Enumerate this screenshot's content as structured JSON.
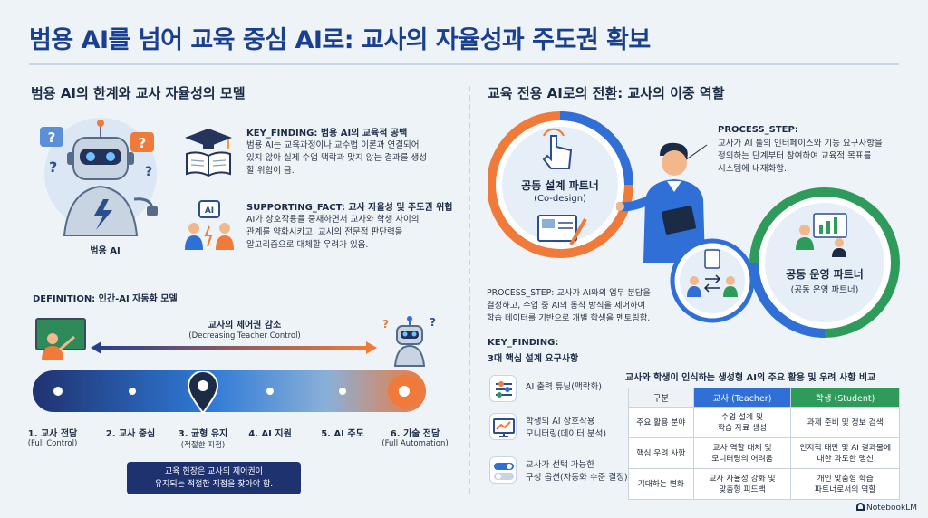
{
  "title": "범용 AI를 넘어 교육 중심 AI로: 교사의 자율성과 주도권 확보",
  "left": {
    "section_title": "범용 AI의 한계와 교사 자율성의 모델",
    "robot_label": "범용 AI",
    "finding1": {
      "heading": "KEY_FINDING: 범용 AI의 교육적 공백",
      "lines": [
        "범용 AI는 교육과정이나 교수법 이론과 연결되어",
        "있지 않아 실제 수업 맥락과 맞지 않는 결과를 생성",
        "할 위험이 큼."
      ]
    },
    "finding2": {
      "heading": "SUPPORTING_FACT: 교사 자율성 및 주도권 위협",
      "lines": [
        "AI가 상호작용을 중재하면서 교사와 학생 사이의",
        "관계를 약화시키고, 교사의 전문적 판단력을",
        "알고리즘으로 대체할 우려가 있음."
      ]
    },
    "definition": "DEFINITION: 인간-AI 자동화 모델",
    "control_label": "교사의 제어권 감소",
    "control_sub": "(Decreasing Teacher Control)",
    "stages": [
      {
        "label": "1. 교사 전담",
        "sub": "(Full Control)"
      },
      {
        "label": "2. 교사 중심",
        "sub": ""
      },
      {
        "label": "3. 균형 유지",
        "sub": "(적절한 지점)"
      },
      {
        "label": "4. AI 지원",
        "sub": ""
      },
      {
        "label": "5. AI 주도",
        "sub": ""
      },
      {
        "label": "6. 기술 전담",
        "sub": "(Full Automation)"
      }
    ],
    "note": [
      "교육 현장은 교사의 제어권이",
      "유지되는 적절한 지점을 찾아야 함."
    ]
  },
  "right": {
    "section_title": "교육 전용 AI로의 전환: 교사의 이중 역할",
    "process1": {
      "heading": "PROCESS_STEP:",
      "lines": [
        "교사가 AI 툴의 인터페이스와 기능 요구사항을",
        "정의하는 단계부터 참여하여 교육적 목표를",
        "시스템에 내재화함."
      ]
    },
    "codesign": {
      "title": "공동 설계 파트너",
      "sub": "(Co-design)"
    },
    "cooperate": {
      "title": "공동 운영 파트너",
      "sub": "(공동 운영 파트너)"
    },
    "process2": {
      "lines": [
        "PROCESS_STEP: 교사가 AI와의 업무 분담을",
        "결정하고, 수업 중 AI의 동작 방식을 제어하여",
        "학습 데이터를 기반으로 개별 학생을 멘토링함."
      ]
    },
    "finding_heading": "KEY_FINDING:",
    "finding_sub": "3대 핵심 설계 요구사항",
    "requirements": [
      {
        "lines": [
          "AI 출력 튜닝(맥락화)"
        ],
        "icon": "sliders-icon"
      },
      {
        "lines": [
          "학생의 AI 상호작용",
          "모니터링(데이터 분석)"
        ],
        "icon": "monitor-chart-icon"
      },
      {
        "lines": [
          "교사가 선택 가능한",
          "구성 옵션(자동화 수준 결정)"
        ],
        "icon": "toggle-icon"
      }
    ],
    "table": {
      "title": "교사와 학생이 인식하는 생성형 AI의 주요 활용 및 우려 사항 비교",
      "headers": [
        "구분",
        "교사 (Teacher)",
        "학생 (Student)"
      ],
      "rows": [
        {
          "k": "주요 활용 분야",
          "t": [
            "수업 설계 및",
            "학습 자료 생성"
          ],
          "s": [
            "과제 준비 및 정보 검색"
          ]
        },
        {
          "k": "핵심 우려 사항",
          "t": [
            "교사 역할 대체 및",
            "모니터링의 어려움"
          ],
          "s": [
            "인지적 태만 및 AI 결과물에",
            "대한 과도한 맹신"
          ]
        },
        {
          "k": "기대하는 변화",
          "t": [
            "교사 자율성 강화 및",
            "맞춤형 피드백"
          ],
          "s": [
            "개인 맞춤형 학습",
            "파트너로서의 역할"
          ]
        }
      ],
      "colors": {
        "teacher": "#2f6fd6",
        "student": "#2e9b5a"
      }
    }
  },
  "brand": "NotebookLM"
}
